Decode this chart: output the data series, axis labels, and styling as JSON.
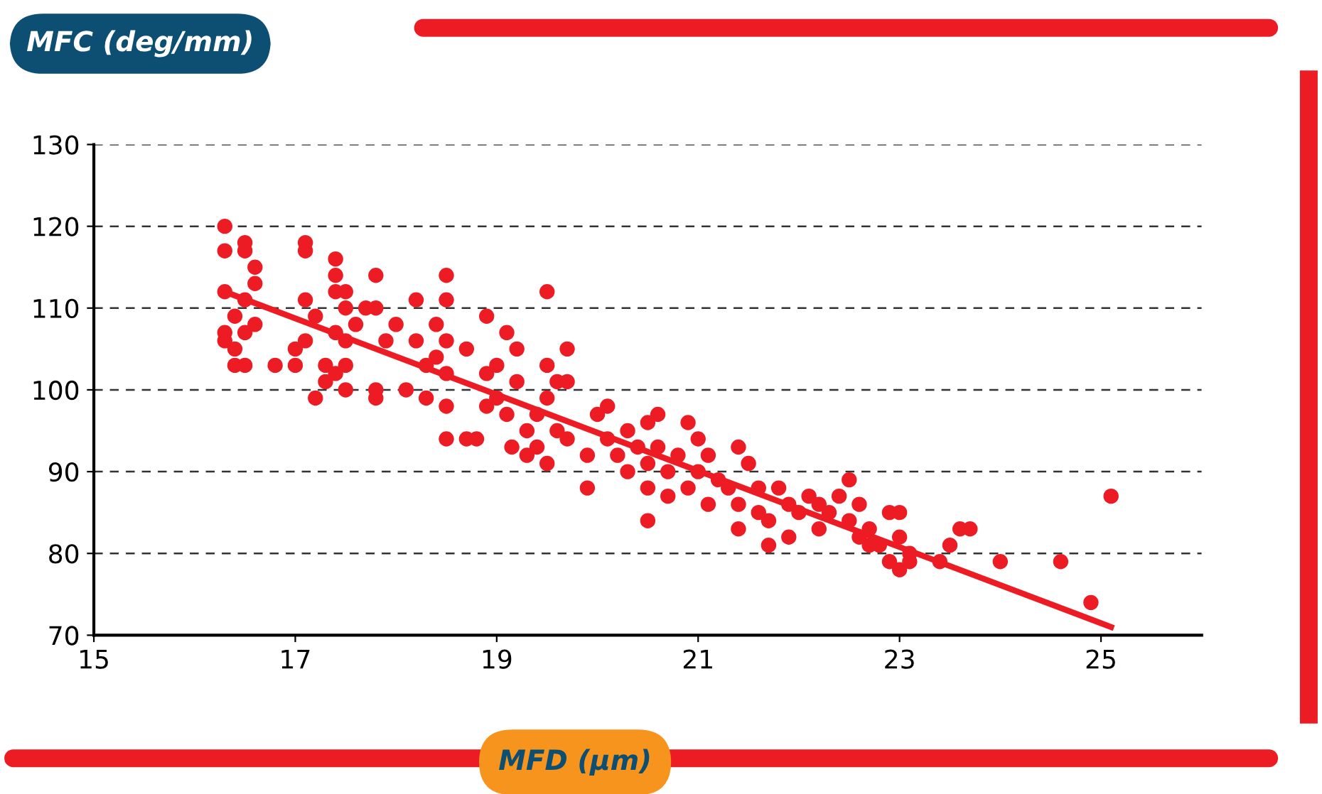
{
  "chart_data": {
    "type": "scatter",
    "ylabel": "MFC (deg/mm)",
    "xlabel": "MFD (µm)",
    "xlim": [
      15,
      26
    ],
    "xticks": [
      15,
      17,
      19,
      21,
      23,
      25
    ],
    "ylim": [
      70,
      130
    ],
    "yticks": [
      70,
      80,
      90,
      100,
      110,
      120,
      130
    ],
    "grid": "y",
    "series": [
      {
        "color": "#ed1c24",
        "marker": "circle",
        "x": [
          16.3,
          16.3,
          16.5,
          16.5,
          16.6,
          16.6,
          16.3,
          16.5,
          16.4,
          16.3,
          16.3,
          16.4,
          16.4,
          16.5,
          16.5,
          16.6,
          16.8,
          17.0,
          17.0,
          17.1,
          17.1,
          17.1,
          17.1,
          17.2,
          17.3,
          17.3,
          17.2,
          17.4,
          17.4,
          17.4,
          17.4,
          17.5,
          17.5,
          17.4,
          17.5,
          17.5,
          17.6,
          17.5,
          17.7,
          17.8,
          17.8,
          17.8,
          17.8,
          17.9,
          18.0,
          18.1,
          18.2,
          18.2,
          18.3,
          18.3,
          18.4,
          18.4,
          18.5,
          18.5,
          18.5,
          18.5,
          18.5,
          18.5,
          18.7,
          18.8,
          18.7,
          18.9,
          18.9,
          18.9,
          19.0,
          19.1,
          19.2,
          19.0,
          19.1,
          19.2,
          19.3,
          19.4,
          19.5,
          19.5,
          19.5,
          19.6,
          19.6,
          19.7,
          19.7,
          19.7,
          19.3,
          19.5,
          19.4,
          19.15,
          19.9,
          19.9,
          20.0,
          20.1,
          20.1,
          20.2,
          20.3,
          20.3,
          20.4,
          20.5,
          20.5,
          20.5,
          20.5,
          20.6,
          20.6,
          20.7,
          20.7,
          20.8,
          20.9,
          20.9,
          21.0,
          21.0,
          21.1,
          21.1,
          21.2,
          21.3,
          21.4,
          21.4,
          21.4,
          21.5,
          21.6,
          21.6,
          21.7,
          21.7,
          21.8,
          21.9,
          22.0,
          22.1,
          22.2,
          22.2,
          22.3,
          22.4,
          22.5,
          22.5,
          22.6,
          22.6,
          22.7,
          22.7,
          22.8,
          22.9,
          23.0,
          23.0,
          23.0,
          23.1,
          23.4,
          23.5,
          23.6,
          23.7,
          24.0,
          24.6,
          24.9,
          25.1,
          22.9,
          21.9,
          23.1
        ],
        "values": [
          120,
          117,
          118,
          117,
          115,
          113,
          112,
          111,
          109,
          107,
          106,
          105,
          103,
          103,
          107,
          108,
          103,
          103,
          105,
          106,
          111,
          118,
          117,
          109,
          103,
          101,
          99,
          102,
          116,
          114,
          112,
          112,
          110,
          107,
          106,
          103,
          108,
          100,
          110,
          114,
          110,
          99,
          100,
          106,
          108,
          100,
          111,
          106,
          103,
          99,
          108,
          104,
          114,
          111,
          106,
          102,
          98,
          94,
          94,
          94,
          105,
          109,
          102,
          98,
          103,
          107,
          105,
          99,
          97,
          101,
          95,
          97,
          112,
          103,
          99,
          101,
          95,
          105,
          101,
          94,
          92,
          91,
          93,
          93,
          92,
          88,
          97,
          98,
          94,
          92,
          90,
          95,
          93,
          96,
          91,
          88,
          84,
          97,
          93,
          90,
          87,
          92,
          96,
          88,
          94,
          90,
          92,
          86,
          89,
          88,
          93,
          86,
          83,
          91,
          88,
          85,
          84,
          81,
          88,
          86,
          85,
          87,
          86,
          83,
          85,
          87,
          89,
          84,
          86,
          82,
          83,
          81,
          81,
          79,
          78,
          85,
          82,
          80,
          79,
          81,
          83,
          83,
          79,
          79,
          74,
          87,
          85,
          82,
          79
        ]
      },
      {
        "type": "line",
        "color": "#ed1c24",
        "x": [
          16.3,
          25.1
        ],
        "values": [
          112,
          71
        ]
      }
    ]
  }
}
